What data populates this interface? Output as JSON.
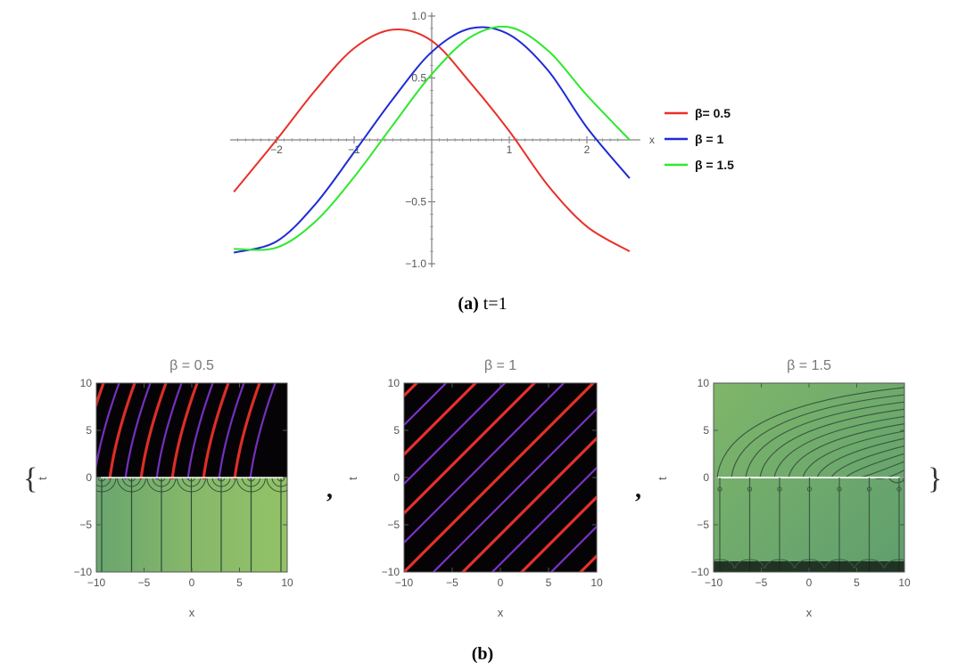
{
  "chart_data": [
    {
      "type": "line",
      "xlabel": "x",
      "ylabel": "",
      "xlim": [
        -2.6,
        2.55
      ],
      "ylim": [
        -1.0,
        1.0
      ],
      "xticks": [
        "−2",
        "−1",
        "1",
        "2"
      ],
      "yticks": [
        "1.0",
        "0.5",
        "−0.5",
        "−1.0"
      ],
      "series": [
        {
          "name": "β= 0.5",
          "color": "#e8302a",
          "x": [
            -2.55,
            -2.0,
            -1.5,
            -1.0,
            -0.5,
            0.0,
            0.5,
            1.0,
            1.5,
            2.0,
            2.55
          ],
          "values": [
            -0.42,
            0.0,
            0.4,
            0.74,
            0.89,
            0.8,
            0.46,
            0.07,
            -0.37,
            -0.7,
            -0.9
          ]
        },
        {
          "name": "β = 1",
          "color": "#1f2bd6",
          "x": [
            -2.55,
            -2.0,
            -1.5,
            -1.0,
            -0.5,
            0.0,
            0.5,
            1.0,
            1.5,
            2.0,
            2.55
          ],
          "values": [
            -0.91,
            -0.82,
            -0.52,
            -0.1,
            0.33,
            0.71,
            0.9,
            0.85,
            0.56,
            0.1,
            -0.31
          ]
        },
        {
          "name": "β = 1.5",
          "color": "#2ee82e",
          "x": [
            -2.55,
            -2.0,
            -1.5,
            -1.0,
            -0.5,
            0.0,
            0.5,
            1.0,
            1.5,
            2.0,
            2.55
          ],
          "values": [
            -0.88,
            -0.87,
            -0.66,
            -0.3,
            0.12,
            0.53,
            0.83,
            0.91,
            0.72,
            0.36,
            0.0
          ]
        }
      ],
      "legend": "right"
    },
    {
      "type": "heatmap",
      "title": "β = 0.5",
      "xlabel": "x",
      "ylabel": "t",
      "xlim": [
        -10,
        10
      ],
      "ylim": [
        -10,
        10
      ],
      "ticks": [
        "−10",
        "−5",
        "0",
        "5",
        "10"
      ]
    },
    {
      "type": "heatmap",
      "title": "β = 1",
      "xlabel": "x",
      "ylabel": "t",
      "xlim": [
        -10,
        10
      ],
      "ylim": [
        -10,
        10
      ],
      "ticks": [
        "−10",
        "−5",
        "0",
        "5",
        "10"
      ]
    },
    {
      "type": "heatmap",
      "title": "β = 1.5",
      "xlabel": "x",
      "ylabel": "t",
      "xlim": [
        -10,
        10
      ],
      "ylim": [
        -10,
        10
      ],
      "ticks": [
        "−10",
        "−5",
        "0",
        "5",
        "10"
      ]
    }
  ],
  "captions": {
    "a_label": "(a)",
    "a_text": "t=1",
    "b_label": "(b)"
  },
  "symbols": {
    "brace_open": "{",
    "brace_close": "}",
    "comma": ","
  }
}
